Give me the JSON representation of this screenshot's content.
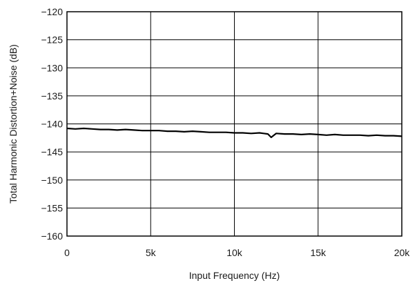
{
  "chart_data": {
    "type": "line",
    "xlabel": "Input Frequency (Hz)",
    "ylabel": "Total Harmonic Distortion+Noise (dB)",
    "xlim": [
      0,
      20000
    ],
    "ylim": [
      -160,
      -120
    ],
    "grid": true,
    "x_ticks": [
      {
        "value": 0,
        "label": "0"
      },
      {
        "value": 5000,
        "label": "5k"
      },
      {
        "value": 10000,
        "label": "10k"
      },
      {
        "value": 15000,
        "label": "15k"
      },
      {
        "value": 20000,
        "label": "20k"
      }
    ],
    "y_ticks": [
      {
        "value": -120,
        "label": "−120"
      },
      {
        "value": -125,
        "label": "−125"
      },
      {
        "value": -130,
        "label": "−130"
      },
      {
        "value": -135,
        "label": "−135"
      },
      {
        "value": -140,
        "label": "−140"
      },
      {
        "value": -145,
        "label": "−145"
      },
      {
        "value": -150,
        "label": "−150"
      },
      {
        "value": -155,
        "label": "−155"
      },
      {
        "value": -160,
        "label": "−160"
      }
    ],
    "series": [
      {
        "color": "#000000",
        "x": [
          0,
          500,
          1000,
          1500,
          2000,
          2500,
          3000,
          3500,
          4000,
          4500,
          5000,
          5500,
          6000,
          6500,
          7000,
          7500,
          8000,
          8500,
          9000,
          9500,
          10000,
          10500,
          11000,
          11500,
          12000,
          12200,
          12500,
          13000,
          13500,
          14000,
          14500,
          15000,
          15500,
          16000,
          16500,
          17000,
          17500,
          18000,
          18500,
          19000,
          19500,
          20000
        ],
        "y": [
          -140.8,
          -140.9,
          -140.8,
          -140.9,
          -141.0,
          -141.0,
          -141.1,
          -141.0,
          -141.1,
          -141.2,
          -141.2,
          -141.2,
          -141.3,
          -141.3,
          -141.4,
          -141.3,
          -141.4,
          -141.5,
          -141.5,
          -141.5,
          -141.6,
          -141.6,
          -141.7,
          -141.6,
          -141.8,
          -142.4,
          -141.7,
          -141.8,
          -141.8,
          -141.9,
          -141.8,
          -141.9,
          -142.0,
          -141.9,
          -142.0,
          -142.0,
          -142.0,
          -142.1,
          -142.0,
          -142.1,
          -142.1,
          -142.2
        ]
      }
    ]
  }
}
